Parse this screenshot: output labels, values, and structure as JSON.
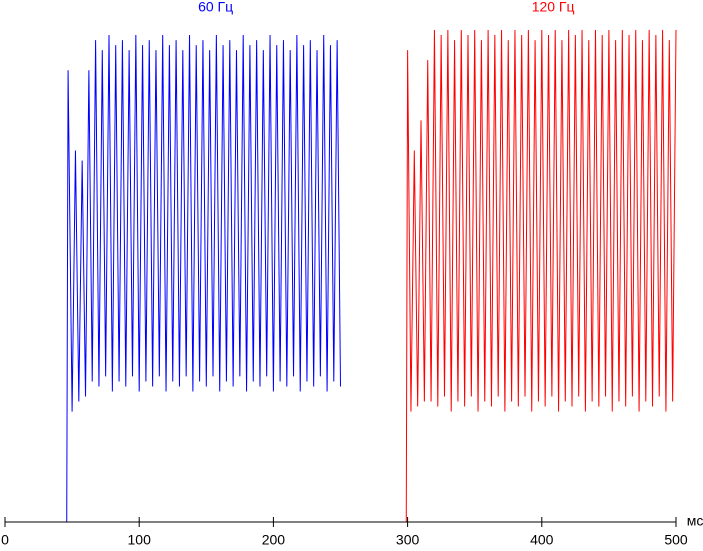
{
  "chart_data": {
    "type": "line",
    "xlabel": "мс",
    "xlim": [
      0,
      500
    ],
    "xticks": [
      0,
      100,
      200,
      300,
      400,
      500
    ],
    "ylim": [
      0,
      100
    ],
    "series": [
      {
        "name": "60 Гц",
        "color": "#0000ff",
        "x": [
          0,
          46,
          47,
          50,
          52.5,
          55,
          57.5,
          60,
          62.5,
          65,
          67.5,
          70,
          72.5,
          75,
          77.5,
          80,
          82.5,
          85,
          87.5,
          90,
          92.5,
          95,
          97.5,
          100,
          102.5,
          105,
          107.5,
          110,
          112.5,
          115,
          117.5,
          120,
          122.5,
          125,
          127.5,
          130,
          132.5,
          135,
          137.5,
          140,
          142.5,
          145,
          147.5,
          150,
          152.5,
          155,
          157.5,
          160,
          162.5,
          165,
          167.5,
          170,
          172.5,
          175,
          177.5,
          180,
          182.5,
          185,
          187.5,
          190,
          192.5,
          195,
          197.5,
          200,
          202.5,
          205,
          207.5,
          210,
          212.5,
          215,
          217.5,
          220,
          222.5,
          225,
          227.5,
          230,
          232.5,
          235,
          237.5,
          240,
          242.5,
          245,
          247.5,
          250
        ],
        "values": [
          0,
          0,
          90,
          22,
          74,
          24,
          72,
          25,
          90,
          28,
          96,
          27,
          94,
          29,
          97,
          26,
          95,
          28,
          96,
          27,
          94,
          29,
          97,
          26,
          95,
          28,
          96,
          27,
          94,
          29,
          97,
          26,
          95,
          28,
          96,
          27,
          94,
          29,
          97,
          26,
          95,
          28,
          96,
          27,
          94,
          29,
          97,
          26,
          95,
          28,
          96,
          27,
          94,
          29,
          97,
          26,
          95,
          28,
          96,
          27,
          94,
          29,
          97,
          26,
          95,
          28,
          96,
          27,
          94,
          29,
          97,
          26,
          95,
          28,
          96,
          27,
          94,
          29,
          97,
          26,
          95,
          28,
          96,
          27
        ]
      },
      {
        "name": "120 Гц",
        "color": "#ff0000",
        "x": [
          250,
          299,
          300,
          302.5,
          305,
          307.5,
          310,
          312.5,
          315,
          317.5,
          320,
          322.5,
          325,
          327.5,
          330,
          332.5,
          335,
          337.5,
          340,
          342.5,
          345,
          347.5,
          350,
          352.5,
          355,
          357.5,
          360,
          362.5,
          365,
          367.5,
          370,
          372.5,
          375,
          377.5,
          380,
          382.5,
          385,
          387.5,
          390,
          392.5,
          395,
          397.5,
          400,
          402.5,
          405,
          407.5,
          410,
          412.5,
          415,
          417.5,
          420,
          422.5,
          425,
          427.5,
          430,
          432.5,
          435,
          437.5,
          440,
          442.5,
          445,
          447.5,
          450,
          452.5,
          455,
          457.5,
          460,
          462.5,
          465,
          467.5,
          470,
          472.5,
          475,
          477.5,
          480,
          482.5,
          485,
          487.5,
          490,
          492.5,
          495,
          497.5,
          500
        ],
        "values": [
          0,
          0,
          94,
          22,
          74,
          23,
          80,
          24,
          92,
          24,
          98,
          23,
          97,
          25,
          98,
          22,
          96,
          24,
          98,
          23,
          97,
          25,
          98,
          22,
          96,
          24,
          98,
          23,
          97,
          25,
          98,
          22,
          96,
          24,
          98,
          23,
          97,
          25,
          98,
          22,
          96,
          24,
          98,
          23,
          97,
          25,
          98,
          22,
          96,
          24,
          98,
          23,
          97,
          25,
          98,
          22,
          96,
          24,
          98,
          23,
          97,
          25,
          98,
          22,
          96,
          24,
          98,
          23,
          97,
          25,
          98,
          22,
          96,
          24,
          98,
          23,
          97,
          25,
          98,
          22,
          96,
          24,
          98
        ]
      }
    ]
  }
}
